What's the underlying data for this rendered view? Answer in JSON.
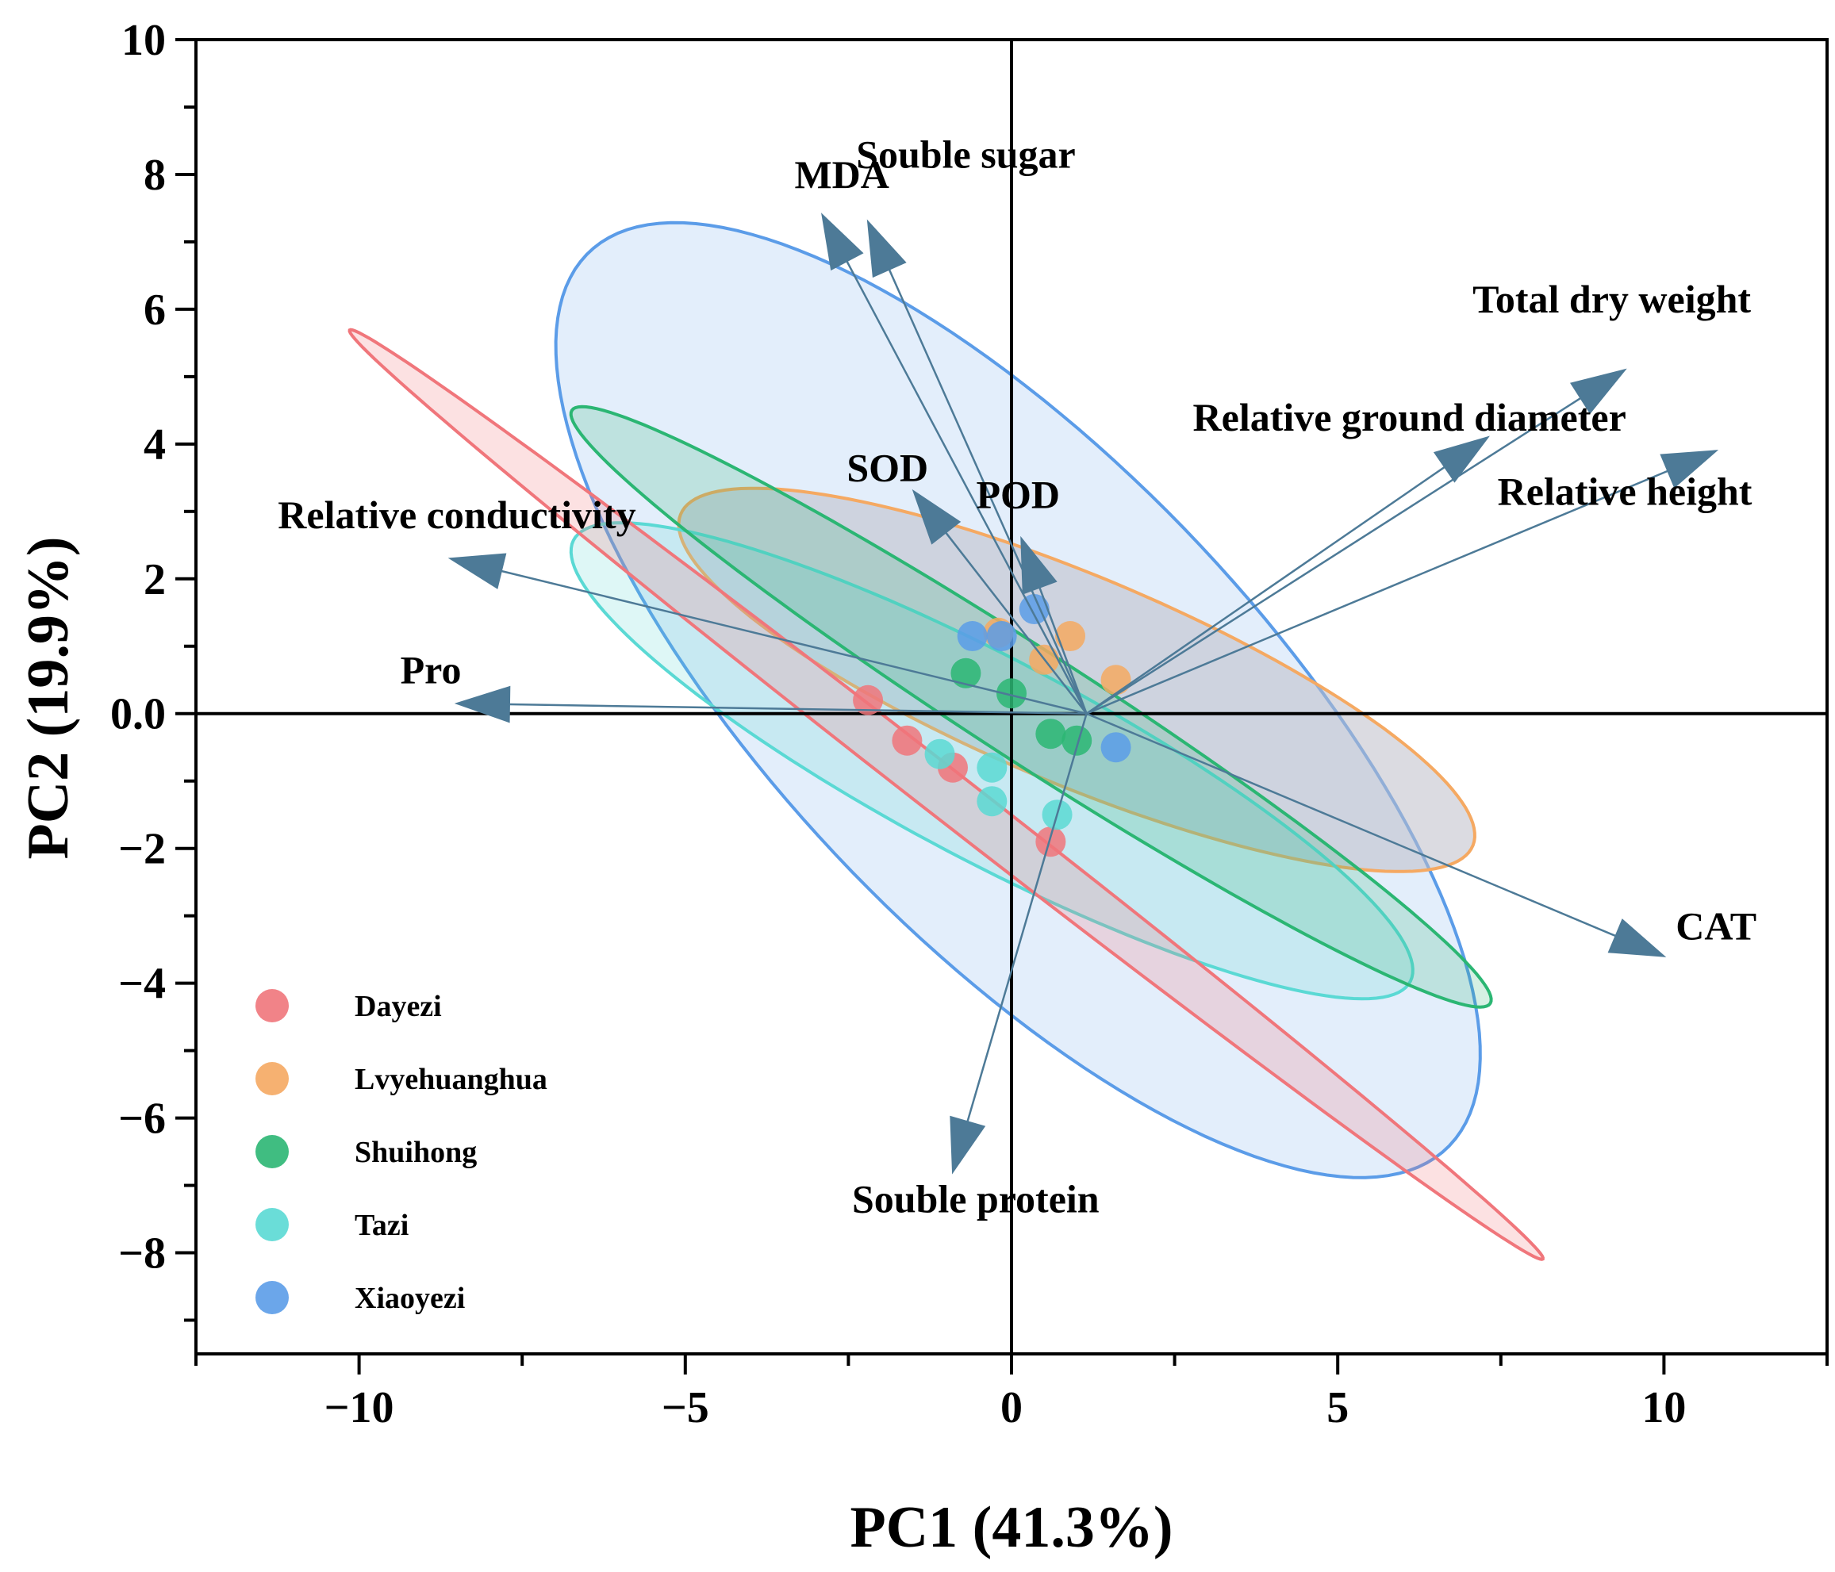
{
  "chart_data": {
    "type": "scatter",
    "subtype": "pca-biplot",
    "xlabel": "PC1 (41.3%)",
    "ylabel": "PC2 (19.9%)",
    "xlim": [
      -12.5,
      12.5
    ],
    "ylim": [
      -9.5,
      10
    ],
    "xticks": [
      -10,
      -5,
      0,
      5,
      10
    ],
    "yticks": [
      -8,
      -6,
      -4,
      -2,
      0,
      2,
      4,
      6,
      8,
      10
    ],
    "xtick_labels": [
      "−10",
      "−5",
      "0",
      "5",
      "10"
    ],
    "ytick_labels": [
      "−8",
      "−6",
      "−4",
      "−2",
      "0.0",
      "2",
      "4",
      "6",
      "8",
      "10"
    ],
    "legend_position": "bottom-left",
    "series": [
      {
        "name": "Dayezi",
        "color": "#f0767b",
        "points": [
          [
            -2.2,
            0.2
          ],
          [
            -1.6,
            -0.4
          ],
          [
            -0.9,
            -0.8
          ],
          [
            0.6,
            -1.9
          ]
        ],
        "ellipse": {
          "center": [
            -1.0,
            -1.2
          ],
          "semi_major": 11.45,
          "semi_minor": 0.36,
          "angle_deg": -37
        }
      },
      {
        "name": "Lvyehuanghua",
        "color": "#f5a962",
        "points": [
          [
            -0.2,
            1.2
          ],
          [
            0.5,
            0.8
          ],
          [
            0.9,
            1.15
          ],
          [
            1.6,
            0.5
          ]
        ],
        "ellipse": {
          "center": [
            1.0,
            0.5
          ],
          "semi_major": 6.55,
          "semi_minor": 1.55,
          "angle_deg": -22
        }
      },
      {
        "name": "Shuihong",
        "color": "#2bb673",
        "points": [
          [
            -0.7,
            0.6
          ],
          [
            0.0,
            0.3
          ],
          [
            0.6,
            -0.3
          ],
          [
            1.0,
            -0.4
          ]
        ],
        "ellipse": {
          "center": [
            0.3,
            0.1
          ],
          "semi_major": 8.3,
          "semi_minor": 0.83,
          "angle_deg": -32
        }
      },
      {
        "name": "Tazi",
        "color": "#5ad9d4",
        "points": [
          [
            -1.1,
            -0.6
          ],
          [
            -0.3,
            -0.8
          ],
          [
            -0.3,
            -1.3
          ],
          [
            0.7,
            -1.5
          ]
        ],
        "ellipse": {
          "center": [
            -0.3,
            -0.7
          ],
          "semi_major": 7.2,
          "semi_minor": 1.5,
          "angle_deg": -27
        }
      },
      {
        "name": "Xiaoyezi",
        "color": "#5b9ce8",
        "points": [
          [
            -0.6,
            1.15
          ],
          [
            -0.15,
            1.15
          ],
          [
            0.35,
            1.55
          ],
          [
            1.6,
            -0.5
          ]
        ],
        "ellipse": {
          "center": [
            0.1,
            0.2
          ],
          "semi_major": 9.35,
          "semi_minor": 3.6,
          "angle_deg": -45
        }
      }
    ],
    "loadings": {
      "origin": [
        1.15,
        0.0
      ],
      "color": "#4d7a97",
      "vectors": [
        {
          "name": "MDA",
          "tip": [
            -2.9,
            7.4
          ]
        },
        {
          "name": "Souble sugar",
          "tip": [
            -2.2,
            7.3
          ]
        },
        {
          "name": "Total dry weight",
          "tip": [
            9.4,
            5.1
          ]
        },
        {
          "name": "Relative ground diameter",
          "tip": [
            7.3,
            4.1
          ]
        },
        {
          "name": "Relative height",
          "tip": [
            10.8,
            3.9
          ]
        },
        {
          "name": "SOD",
          "tip": [
            -1.5,
            3.3
          ]
        },
        {
          "name": "POD",
          "tip": [
            0.15,
            2.6
          ]
        },
        {
          "name": "Relative conductivity",
          "tip": [
            -8.6,
            2.3
          ]
        },
        {
          "name": "Pro",
          "tip": [
            -8.5,
            0.15
          ]
        },
        {
          "name": "CAT",
          "tip": [
            10.0,
            -3.6
          ]
        },
        {
          "name": "Souble protein",
          "tip": [
            -0.9,
            -6.8
          ]
        }
      ]
    }
  }
}
